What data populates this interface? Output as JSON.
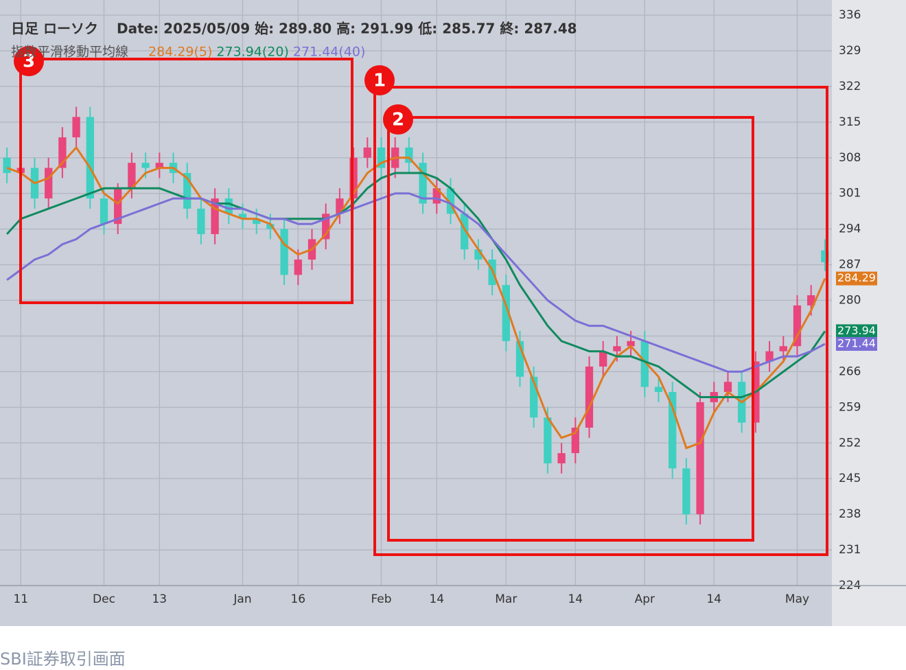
{
  "chart_data": {
    "type": "candlestick",
    "title": "日足 ローソク",
    "subtitle": "Date: 2025/05/09 始: 289.80 高: 291.99 低: 285.77 終: 287.48",
    "legend_title": "指数平滑移動平均線",
    "categories": [
      null,
      "11",
      null,
      null,
      null,
      null,
      null,
      "Dec",
      null,
      null,
      null,
      "13",
      null,
      null,
      null,
      null,
      null,
      "Jan",
      null,
      null,
      null,
      "16",
      null,
      null,
      null,
      null,
      null,
      "Feb",
      null,
      null,
      null,
      "14",
      null,
      null,
      null,
      null,
      "Mar",
      null,
      null,
      null,
      null,
      "14",
      null,
      null,
      null,
      null,
      "Apr",
      null,
      null,
      null,
      null,
      "14",
      null,
      null,
      null,
      null,
      null,
      "May",
      null,
      null
    ],
    "ohlc": {
      "open": [
        308,
        305,
        306,
        300,
        306,
        312,
        316,
        300,
        295,
        302,
        307,
        306,
        307,
        305,
        298,
        293,
        300,
        297,
        296,
        295,
        294,
        285,
        288,
        292,
        297,
        300,
        308,
        310,
        306,
        310,
        307,
        299,
        302,
        297,
        290,
        288,
        283,
        272,
        265,
        257,
        248,
        250,
        255,
        267,
        270,
        271,
        272,
        263,
        262,
        247,
        238,
        260,
        262,
        264,
        256,
        268,
        270,
        271,
        279,
        289.8
      ],
      "high": [
        310,
        308,
        308,
        308,
        314,
        318,
        318,
        302,
        303,
        309,
        309,
        309,
        309,
        307,
        300,
        302,
        302,
        299,
        298,
        297,
        296,
        290,
        294,
        299,
        302,
        310,
        312,
        312,
        312,
        312,
        309,
        304,
        304,
        299,
        292,
        290,
        285,
        274,
        267,
        259,
        252,
        257,
        269,
        272,
        273,
        274,
        274,
        265,
        264,
        249,
        262,
        264,
        266,
        266,
        270,
        272,
        273,
        281,
        283,
        291.99
      ],
      "low": [
        303,
        303,
        298,
        298,
        304,
        310,
        298,
        293,
        293,
        300,
        304,
        304,
        303,
        296,
        291,
        291,
        295,
        294,
        293,
        292,
        283,
        283,
        286,
        290,
        295,
        298,
        306,
        304,
        304,
        305,
        297,
        297,
        295,
        288,
        286,
        281,
        270,
        263,
        255,
        246,
        246,
        248,
        253,
        265,
        268,
        269,
        261,
        260,
        245,
        236,
        236,
        258,
        260,
        254,
        254,
        266,
        268,
        269,
        277,
        285.77
      ],
      "close": [
        305,
        306,
        300,
        306,
        312,
        316,
        300,
        295,
        302,
        307,
        306,
        307,
        305,
        298,
        293,
        300,
        297,
        296,
        295,
        294,
        285,
        288,
        292,
        297,
        300,
        308,
        310,
        306,
        310,
        307,
        299,
        302,
        297,
        290,
        288,
        283,
        272,
        265,
        257,
        248,
        250,
        255,
        267,
        270,
        271,
        272,
        263,
        262,
        247,
        238,
        260,
        262,
        264,
        256,
        268,
        270,
        271,
        279,
        281,
        287.48
      ]
    },
    "up_color": "#e8467c",
    "down_color": "#3fd0c2",
    "series": [
      {
        "name": "284.29(5)",
        "color": "#e07a1f",
        "values": [
          306,
          305,
          303,
          304,
          307,
          310,
          306,
          301,
          299,
          302,
          305,
          306,
          306,
          304,
          300,
          298,
          297,
          296,
          296,
          295,
          291,
          289,
          290,
          293,
          297,
          301,
          305,
          307,
          308,
          308,
          305,
          302,
          299,
          294,
          290,
          286,
          279,
          271,
          264,
          257,
          253,
          254,
          259,
          265,
          269,
          271,
          268,
          265,
          259,
          251,
          252,
          258,
          262,
          260,
          262,
          265,
          268,
          273,
          278,
          284.29
        ]
      },
      {
        "name": "273.94(20)",
        "color": "#0f8a5f",
        "values": [
          293,
          296,
          297,
          298,
          299,
          300,
          301,
          302,
          302,
          302,
          302,
          302,
          301,
          300,
          300,
          299,
          299,
          298,
          297,
          296,
          296,
          296,
          296,
          296,
          297,
          299,
          302,
          304,
          305,
          305,
          305,
          304,
          302,
          299,
          296,
          292,
          288,
          283,
          279,
          275,
          272,
          271,
          270,
          270,
          269,
          269,
          268,
          267,
          265,
          263,
          261,
          261,
          261,
          261,
          262,
          264,
          266,
          268,
          270,
          273.94
        ]
      },
      {
        "name": "271.44(40)",
        "color": "#7b6fd6",
        "values": [
          284,
          286,
          288,
          289,
          291,
          292,
          294,
          295,
          296,
          297,
          298,
          299,
          300,
          300,
          300,
          299,
          298,
          298,
          297,
          296,
          296,
          295,
          295,
          296,
          297,
          298,
          299,
          300,
          301,
          301,
          300,
          300,
          299,
          297,
          295,
          292,
          289,
          286,
          283,
          280,
          278,
          276,
          275,
          275,
          274,
          273,
          272,
          271,
          270,
          269,
          268,
          267,
          266,
          266,
          267,
          268,
          269,
          269,
          270,
          271.44
        ]
      }
    ],
    "ylim": [
      224,
      336
    ],
    "yticks": [
      224,
      231,
      238,
      245,
      252,
      259,
      266,
      273,
      280,
      287,
      294,
      301,
      308,
      315,
      322,
      329,
      336
    ],
    "grid": true,
    "annotations": [
      {
        "label": "1"
      },
      {
        "label": "2"
      },
      {
        "label": "3"
      }
    ]
  },
  "caption": "SBI証券取引画面"
}
